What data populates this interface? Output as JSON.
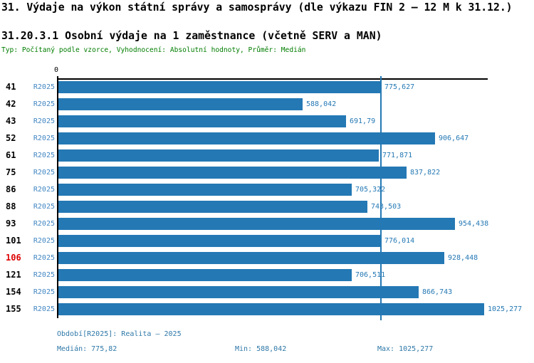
{
  "title": "31. Výdaje na výkon státní správy a samosprávy (dle výkazu FIN 2 – 12 M k 31.12.)",
  "subtitle": "31.20.3.1 Osobní výdaje na 1 zaměstnance (včetně SERV a MAN)",
  "meta_line": "Typ: Počítaný podle vzorce, Vyhodnocení: Absolutní hodnoty, Průměr: Medián",
  "colors": {
    "bar_blue": "#2478b4",
    "series_label_blue": "#4186c2",
    "footer_blue": "#2e78a8",
    "meta_green": "#007d00",
    "highlight_red": "#dd0000",
    "axis_black": "#000000"
  },
  "chart_data": {
    "type": "bar",
    "orientation": "horizontal",
    "zero_tick_label": "0",
    "series_label": "R2025",
    "categories": [
      "41",
      "42",
      "43",
      "52",
      "61",
      "75",
      "86",
      "88",
      "93",
      "101",
      "106",
      "121",
      "154",
      "155"
    ],
    "values": [
      775.627,
      588.042,
      691.79,
      906.647,
      771.871,
      837.822,
      705.322,
      743.503,
      954.438,
      776.014,
      928.448,
      706.511,
      866.743,
      1025.277
    ],
    "value_labels": [
      "775,627",
      "588,042",
      "691,79",
      "906,647",
      "771,871",
      "837,822",
      "705,322",
      "743,503",
      "954,438",
      "776,014",
      "928,448",
      "706,511",
      "866,743",
      "1025,277"
    ],
    "highlighted_category": "106",
    "median_value": 775.82,
    "xlim": [
      0,
      1035
    ],
    "grid": false,
    "legend": "none"
  },
  "footer": {
    "period_line": "Období[R2025]: Realita – 2025",
    "median_label": "Medián: 775,82",
    "min_label": "Min: 588,042",
    "max_label": "Max: 1025,277"
  }
}
